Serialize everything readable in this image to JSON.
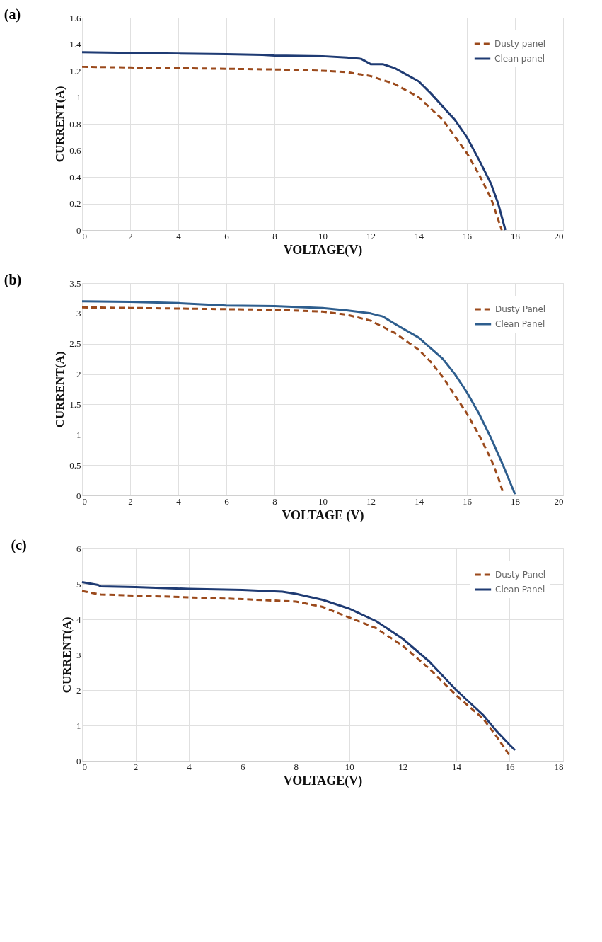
{
  "chart_data": [
    {
      "type": "line",
      "title": "(a)",
      "xlabel": "VOLTAGE(V)",
      "ylabel": "CURRENT(A)",
      "xlim": [
        0,
        20
      ],
      "xticks": [
        0,
        2,
        4,
        6,
        8,
        10,
        12,
        14,
        16,
        18,
        20
      ],
      "ylim": [
        0,
        1.6
      ],
      "yticks": [
        0,
        0.2,
        0.4,
        0.6,
        0.8,
        1,
        1.2,
        1.4,
        1.6
      ],
      "grid": true,
      "legend": "top right",
      "marker": "none",
      "series": [
        {
          "name": "Dusty panel",
          "color": "#9b4a1c",
          "line_style": "dashed",
          "x": [
            0,
            2,
            4,
            6,
            8,
            10,
            11,
            12,
            13,
            14,
            15,
            16,
            16.5,
            17,
            17.3,
            17.45
          ],
          "values": [
            1.23,
            1.225,
            1.22,
            1.215,
            1.21,
            1.2,
            1.19,
            1.16,
            1.1,
            1.0,
            0.83,
            0.58,
            0.42,
            0.24,
            0.08,
            0
          ]
        },
        {
          "name": "Clean panel",
          "color": "#1f3b73",
          "line_style": "solid",
          "x": [
            0,
            2,
            4,
            6,
            7.5,
            8,
            10,
            11,
            11.6,
            12,
            12.5,
            13,
            13.5,
            14,
            14.5,
            15,
            15.5,
            16,
            16.5,
            17,
            17.3,
            17.6
          ],
          "values": [
            1.34,
            1.335,
            1.33,
            1.325,
            1.32,
            1.315,
            1.31,
            1.3,
            1.29,
            1.25,
            1.25,
            1.22,
            1.17,
            1.12,
            1.03,
            0.93,
            0.83,
            0.7,
            0.53,
            0.35,
            0.2,
            0
          ]
        }
      ]
    },
    {
      "type": "line",
      "title": "(b)",
      "xlabel": "VOLTAGE (V)",
      "ylabel": "CURRENT(A)",
      "xlim": [
        0,
        20
      ],
      "xticks": [
        0,
        2,
        4,
        6,
        8,
        10,
        12,
        14,
        16,
        18,
        20
      ],
      "ylim": [
        0,
        3.5
      ],
      "yticks": [
        0,
        0.5,
        1,
        1.5,
        2,
        2.5,
        3,
        3.5
      ],
      "grid": true,
      "legend": "top right",
      "marker": "none",
      "series": [
        {
          "name": "Dusty Panel",
          "color": "#9b4a1c",
          "line_style": "dashed",
          "x": [
            0,
            2,
            4,
            6,
            8,
            10,
            11,
            12,
            13,
            14,
            14.5,
            15,
            15.5,
            16,
            16.5,
            17,
            17.3,
            17.5
          ],
          "values": [
            3.1,
            3.09,
            3.08,
            3.07,
            3.06,
            3.03,
            2.98,
            2.88,
            2.68,
            2.4,
            2.2,
            1.95,
            1.65,
            1.35,
            1.0,
            0.6,
            0.3,
            0.05
          ]
        },
        {
          "name": "Clean Panel",
          "color": "#2e5e8e",
          "line_style": "solid",
          "x": [
            0,
            2,
            4,
            6,
            8,
            10,
            11,
            12,
            12.5,
            13,
            14,
            15,
            15.5,
            16,
            16.5,
            17,
            17.5,
            18
          ],
          "values": [
            3.2,
            3.19,
            3.17,
            3.13,
            3.12,
            3.09,
            3.05,
            3.0,
            2.95,
            2.83,
            2.6,
            2.25,
            2.0,
            1.7,
            1.35,
            0.95,
            0.5,
            0.02
          ]
        }
      ]
    },
    {
      "type": "line",
      "title": "(c)",
      "xlabel": "VOLTAGE(V)",
      "ylabel": "CURRENT(A)",
      "xlim": [
        0,
        18
      ],
      "xticks": [
        0,
        2,
        4,
        6,
        8,
        10,
        12,
        14,
        16,
        18
      ],
      "ylim": [
        0,
        6
      ],
      "yticks": [
        0,
        1,
        2,
        3,
        4,
        5,
        6
      ],
      "grid": true,
      "legend": "top right",
      "marker": "none",
      "series": [
        {
          "name": "Dusty Panel",
          "color": "#9b4a1c",
          "line_style": "dashed",
          "x": [
            0,
            0.7,
            2,
            4,
            6,
            8,
            9,
            10,
            11,
            12,
            13,
            14,
            15,
            15.5,
            16
          ],
          "values": [
            4.8,
            4.7,
            4.67,
            4.62,
            4.57,
            4.5,
            4.35,
            4.05,
            3.75,
            3.25,
            2.6,
            1.85,
            1.2,
            0.7,
            0.15
          ]
        },
        {
          "name": "Clean Panel",
          "color": "#1f3b73",
          "line_style": "solid",
          "x": [
            0,
            0.6,
            0.7,
            2,
            4,
            6,
            7.5,
            8,
            9,
            10,
            11,
            12,
            13,
            14,
            15,
            15.5,
            16,
            16.2
          ],
          "values": [
            5.05,
            4.97,
            4.93,
            4.91,
            4.86,
            4.83,
            4.78,
            4.72,
            4.55,
            4.3,
            3.95,
            3.45,
            2.8,
            2.0,
            1.3,
            0.85,
            0.45,
            0.3
          ]
        }
      ]
    }
  ]
}
